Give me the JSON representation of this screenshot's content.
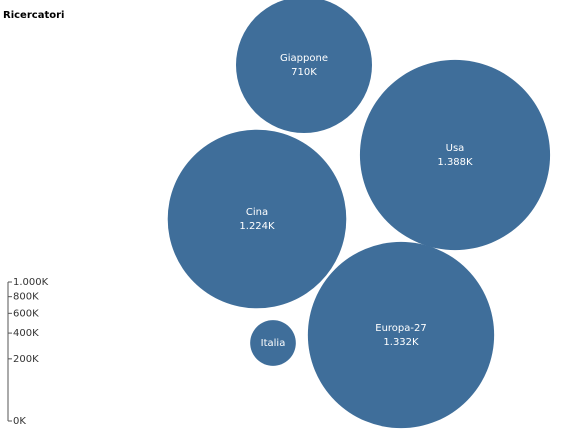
{
  "chart_data": {
    "type": "bubble",
    "title": "Ricercatori",
    "categories": [
      "Giappone",
      "Usa",
      "Cina",
      "Europa-27",
      "Italia"
    ],
    "values": [
      710000,
      1388000,
      1224000,
      1332000,
      80000
    ],
    "value_labels": [
      "710K",
      "1.388K",
      "1.224K",
      "1.332K",
      null
    ],
    "color": "#3f6e9a",
    "sizelim": [
      0,
      1000000
    ],
    "sizeticks": [
      {
        "value": 0,
        "label": "0K"
      },
      {
        "value": 200000,
        "label": "200K"
      },
      {
        "value": 400000,
        "label": "400K"
      },
      {
        "value": 600000,
        "label": "600K"
      },
      {
        "value": 800000,
        "label": "800K"
      },
      {
        "value": 1000000,
        "label": "1.000K"
      }
    ]
  }
}
